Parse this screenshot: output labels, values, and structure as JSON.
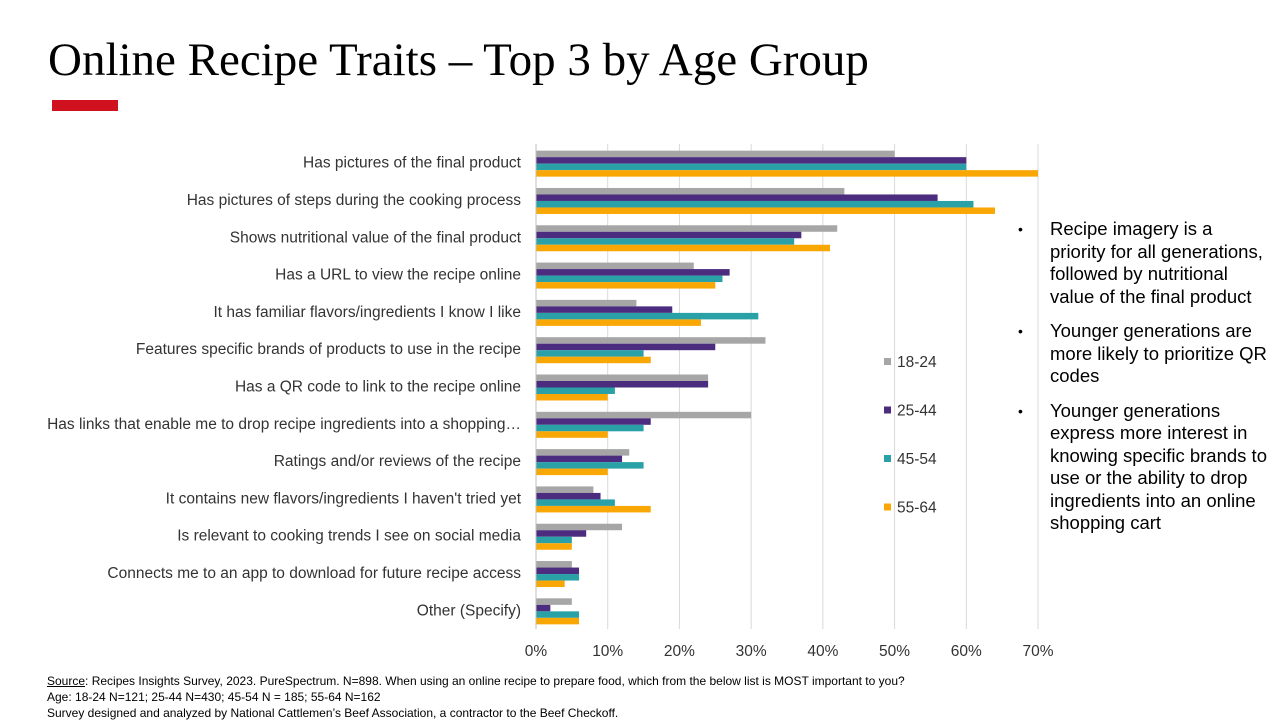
{
  "title": "Online Recipe Traits – Top 3 by Age Group",
  "colors": {
    "accent": "#D0121F",
    "series": [
      "#A6A6A6",
      "#4B2C7E",
      "#2AA0A7",
      "#F9A704"
    ],
    "grid": "#D9D9D9",
    "axis": "#BFBFBF"
  },
  "chart_data": {
    "type": "bar",
    "orientation": "horizontal",
    "categories": [
      "Has pictures of the final product",
      "Has pictures of steps during the cooking process",
      "Shows nutritional value of the final product",
      "Has a URL to view the recipe online",
      "It has familiar flavors/ingredients I know I like",
      "Features specific brands of products to use in the recipe",
      "Has a QR code to link to the recipe online",
      "Has links that enable me to drop recipe ingredients into a shopping…",
      "Ratings and/or reviews of the recipe",
      "It contains new flavors/ingredients I haven't tried yet",
      "Is relevant to cooking trends I see on social media",
      "Connects me to an app to download for future recipe access",
      "Other (Specify)"
    ],
    "series": [
      {
        "name": "18-24",
        "values": [
          50,
          43,
          42,
          22,
          14,
          32,
          24,
          30,
          13,
          8,
          12,
          5,
          5
        ]
      },
      {
        "name": "25-44",
        "values": [
          60,
          56,
          37,
          27,
          19,
          25,
          24,
          16,
          12,
          9,
          7,
          6,
          2
        ]
      },
      {
        "name": "45-54",
        "values": [
          60,
          61,
          36,
          26,
          31,
          15,
          11,
          15,
          15,
          11,
          5,
          6,
          6
        ]
      },
      {
        "name": "55-64",
        "values": [
          70,
          64,
          41,
          25,
          23,
          16,
          10,
          10,
          10,
          16,
          5,
          4,
          6
        ]
      }
    ],
    "xlim": [
      0,
      70
    ],
    "ticks": [
      "0%",
      "10%",
      "20%",
      "30%",
      "40%",
      "50%",
      "60%",
      "70%"
    ],
    "grid": true,
    "legend_position": "right"
  },
  "bullets": [
    "Recipe imagery is a priority for all generations, followed by nutritional value of the final product",
    "Younger generations are more likely to prioritize QR codes",
    "Younger generations express more interest in knowing specific brands to use or the ability to drop ingredients into an online shopping cart"
  ],
  "bullet_glyph": "•",
  "footnotes": {
    "source_label": "Source",
    "source_text": ": Recipes Insights Survey, 2023. PureSpectrum. N=898. When using an online recipe to prepare food, which from the below list is MOST important to you?",
    "age_line": "Age: 18-24 N=121; 25-44 N=430; 45-54 N = 185; 55-64 N=162",
    "credit_line": "Survey designed and analyzed by National Cattlemen’s Beef Association, a contractor to the Beef Checkoff."
  }
}
